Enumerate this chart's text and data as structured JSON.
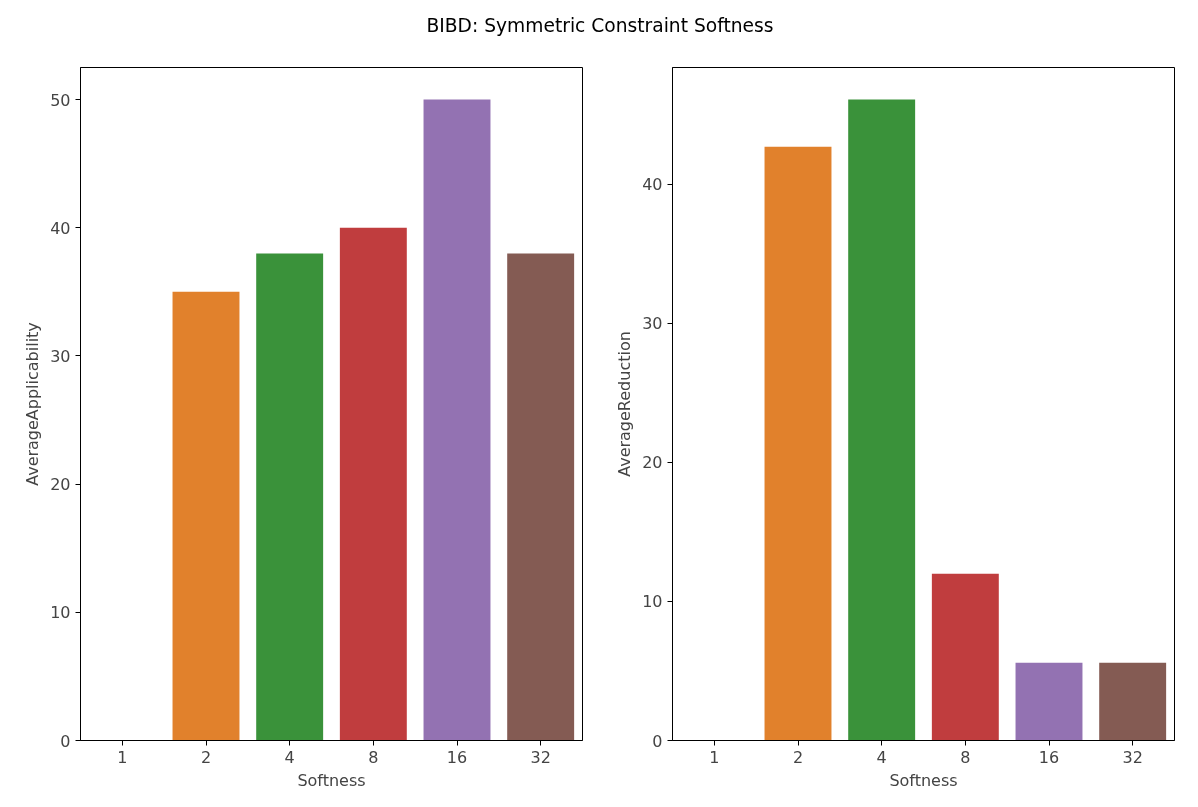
{
  "chart_data": [
    {
      "type": "bar",
      "title": "BIBD: Symmetric Constraint Softness",
      "xlabel": "Softness",
      "ylabel": "AverageApplicability",
      "categories": [
        "1",
        "2",
        "4",
        "8",
        "16",
        "32"
      ],
      "values": [
        0,
        35,
        38,
        40,
        50,
        38
      ],
      "colors": [
        "#3274a1",
        "#e1812c",
        "#3a923a",
        "#c03d3e",
        "#9372b2",
        "#845b53"
      ],
      "ylim": [
        0,
        52.5
      ],
      "yticks": [
        0,
        10,
        20,
        30,
        40,
        50
      ],
      "grid": false
    },
    {
      "type": "bar",
      "xlabel": "Softness",
      "ylabel": "AverageReduction",
      "categories": [
        "1",
        "2",
        "4",
        "8",
        "16",
        "32"
      ],
      "values": [
        0,
        42.7,
        46.1,
        12,
        5.6,
        5.6
      ],
      "colors": [
        "#3274a1",
        "#e1812c",
        "#3a923a",
        "#c03d3e",
        "#9372b2",
        "#845b53"
      ],
      "ylim": [
        0,
        48.4
      ],
      "yticks": [
        0,
        10,
        20,
        30,
        40
      ],
      "grid": false
    }
  ]
}
